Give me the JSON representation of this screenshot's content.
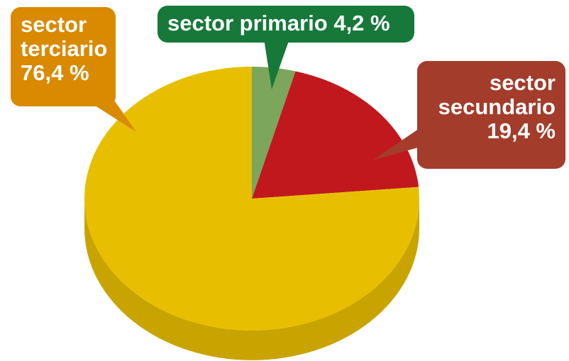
{
  "chart_data": {
    "type": "pie",
    "categories": [
      "sector primario",
      "sector secundario",
      "sector terciario"
    ],
    "values": [
      4.2,
      19.4,
      76.4
    ],
    "value_labels": [
      "4,2 %",
      "19,4 %",
      "76,4 %"
    ],
    "colors": [
      "#7ba65b",
      "#c0181d",
      "#e7bf00"
    ],
    "side_colors": [
      "#5f8a45",
      "#9a1216",
      "#c9a400"
    ],
    "label_colors": [
      "#16793a",
      "#a43c2b",
      "#d98a00"
    ]
  }
}
